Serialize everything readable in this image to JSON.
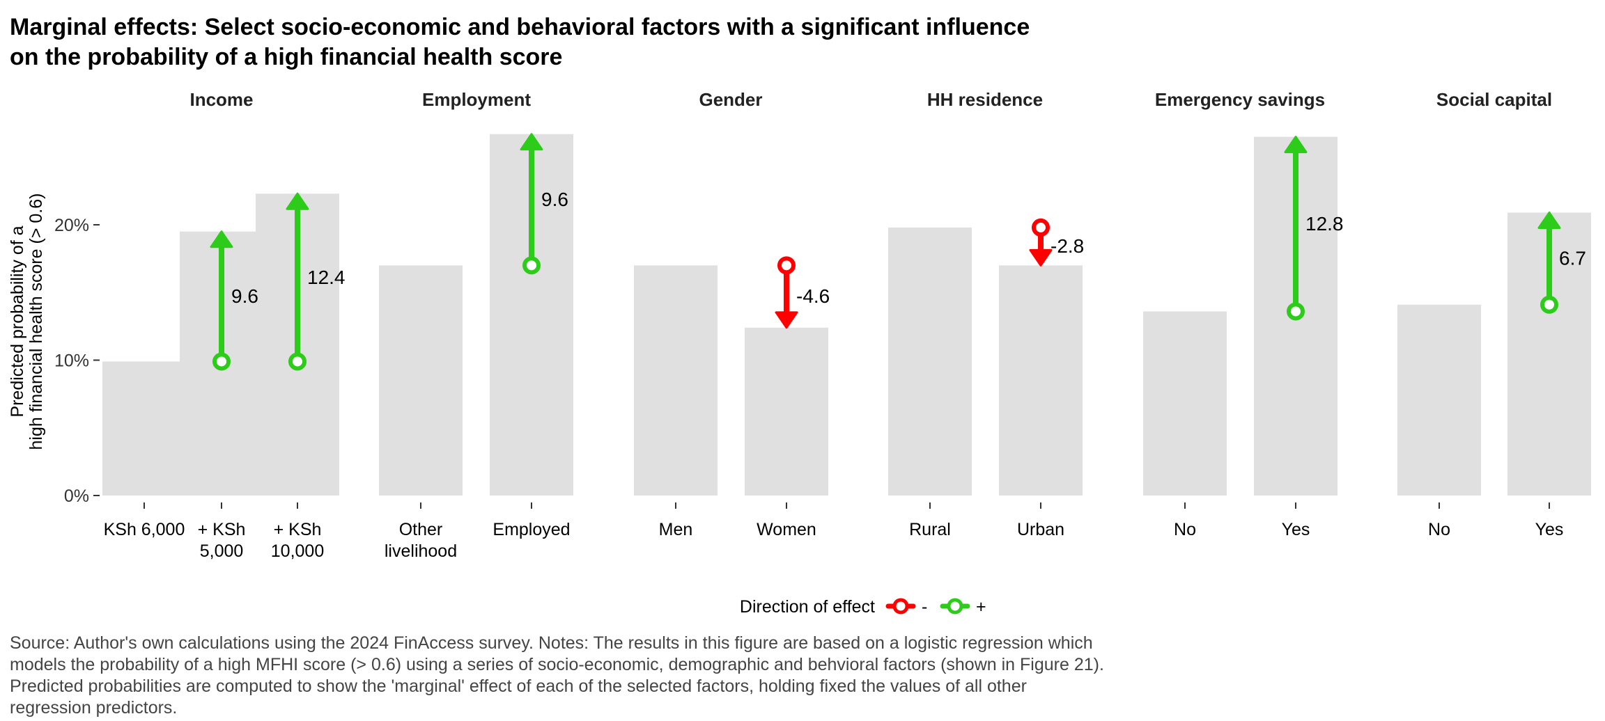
{
  "title_lines": [
    "Marginal effects: Select socio-economic and behavioral factors with a significant influence",
    "on the probability of a high financial health score"
  ],
  "note_lines": [
    "Source: Author's own calculations using the 2024 FinAccess survey. Notes: The results in this figure are based on a logistic regression which",
    "models the probability of a high MFHI score (> 0.6) using a series of socio-economic, demographic and behvioral factors (shown in Figure 21).",
    "Predicted probabilities are computed to show the 'marginal' effect of each of the selected factors, holding fixed the values of all other",
    "regression predictors."
  ],
  "colors": {
    "bar": "#e0e0e0",
    "positive": "#2ecc1a",
    "negative": "#ff0000",
    "title": "#000000",
    "note": "#444444"
  },
  "chart_data": {
    "type": "bar",
    "ylabel_lines": [
      "Predicted probability of a",
      "high financial health score (> 0.6)"
    ],
    "yticks": [
      "0%",
      "10%",
      "20%"
    ],
    "ylim": [
      0,
      27.5
    ],
    "grid": false,
    "legend": {
      "title": "Direction of effect",
      "position": "bottom",
      "entries": [
        {
          "label": "-",
          "color": "#ff0000"
        },
        {
          "label": "+",
          "color": "#2ecc1a"
        }
      ]
    },
    "panels": [
      {
        "title": "Income",
        "categories": [
          [
            "KSh 6,000"
          ],
          [
            "+ KSh",
            "5,000"
          ],
          [
            "+ KSh",
            "10,000"
          ]
        ],
        "values": [
          9.9,
          19.5,
          22.3
        ],
        "effects": [
          {
            "target": 1,
            "from": 9.9,
            "to": 19.5,
            "label": "9.6",
            "sign": "+"
          },
          {
            "target": 2,
            "from": 9.9,
            "to": 22.3,
            "label": "12.4",
            "sign": "+"
          }
        ]
      },
      {
        "title": "Employment",
        "categories": [
          [
            "Other",
            "livelihood"
          ],
          [
            "Employed"
          ]
        ],
        "values": [
          17.0,
          26.7
        ],
        "effects": [
          {
            "target": 1,
            "from": 17.0,
            "to": 26.7,
            "label": "9.6",
            "sign": "+"
          }
        ]
      },
      {
        "title": "Gender",
        "categories": [
          [
            "Men"
          ],
          [
            "Women"
          ]
        ],
        "values": [
          17.0,
          12.4
        ],
        "effects": [
          {
            "target": 1,
            "from": 17.0,
            "to": 12.4,
            "label": "-4.6",
            "sign": "-"
          }
        ]
      },
      {
        "title": "HH residence",
        "categories": [
          [
            "Rural"
          ],
          [
            "Urban"
          ]
        ],
        "values": [
          19.8,
          17.0
        ],
        "effects": [
          {
            "target": 1,
            "from": 19.8,
            "to": 17.0,
            "label": "-2.8",
            "sign": "-"
          }
        ]
      },
      {
        "title": "Emergency savings",
        "categories": [
          [
            "No"
          ],
          [
            "Yes"
          ]
        ],
        "values": [
          13.6,
          26.5
        ],
        "effects": [
          {
            "target": 1,
            "from": 13.6,
            "to": 26.5,
            "label": "12.8",
            "sign": "+"
          }
        ]
      },
      {
        "title": "Social capital",
        "categories": [
          [
            "No"
          ],
          [
            "Yes"
          ]
        ],
        "values": [
          14.1,
          20.9
        ],
        "effects": [
          {
            "target": 1,
            "from": 14.1,
            "to": 20.9,
            "label": "6.7",
            "sign": "+"
          }
        ]
      }
    ]
  }
}
